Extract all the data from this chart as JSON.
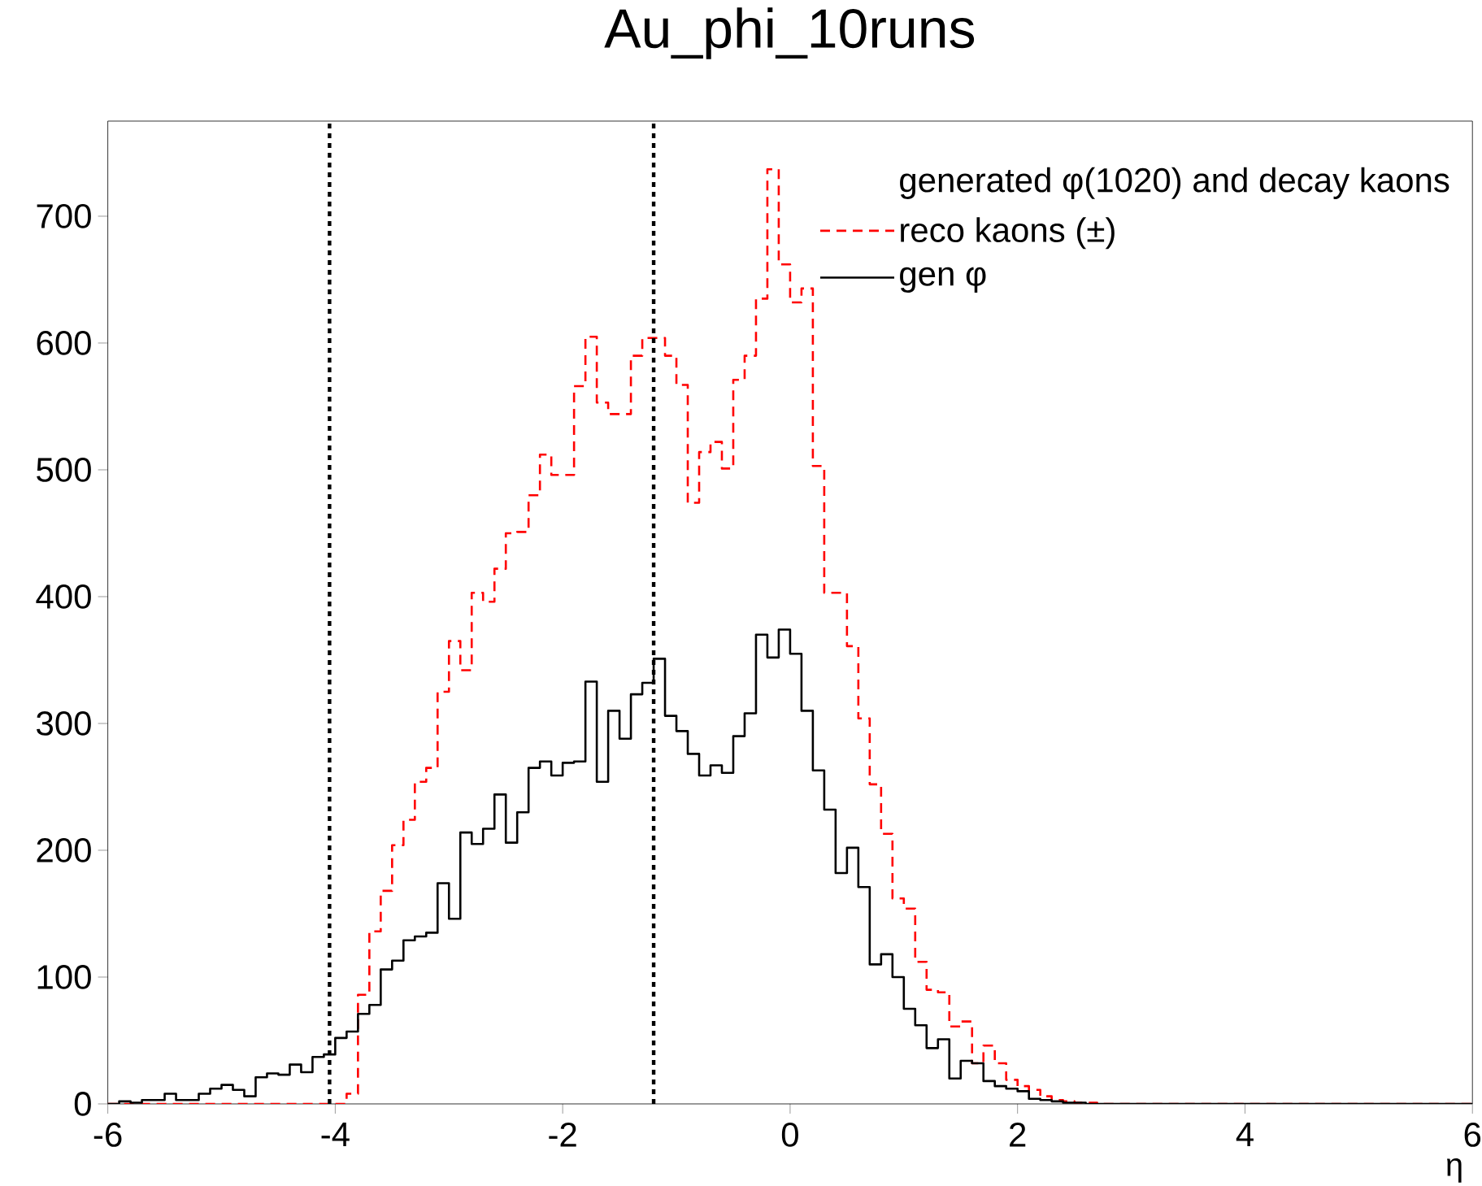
{
  "chart_data": {
    "type": "histogram",
    "title": "Au_phi_10runs",
    "xlabel": "η",
    "legend_title": "generated φ(1020) and decay kaons",
    "bins": [
      -6,
      -5.9,
      -5.8,
      -5.7,
      -5.6,
      -5.5,
      -5.4,
      -5.3,
      -5.2,
      -5.1,
      -5,
      -4.9,
      -4.8,
      -4.7,
      -4.6,
      -4.5,
      -4.4,
      -4.3,
      -4.2,
      -4.1,
      -4,
      -3.9,
      -3.8,
      -3.7,
      -3.6,
      -3.5,
      -3.4,
      -3.3,
      -3.2,
      -3.1,
      -3,
      -2.9,
      -2.8,
      -2.7,
      -2.6,
      -2.5,
      -2.4,
      -2.3,
      -2.2,
      -2.1,
      -2,
      -1.9,
      -1.8,
      -1.7,
      -1.6,
      -1.5,
      -1.4,
      -1.3,
      -1.2,
      -1.1,
      -1,
      -0.9,
      -0.8,
      -0.7,
      -0.6,
      -0.5,
      -0.4,
      -0.3,
      -0.2,
      -0.1,
      0,
      0.1,
      0.2,
      0.3,
      0.4,
      0.5,
      0.6,
      0.7,
      0.8,
      0.9,
      1,
      1.1,
      1.2,
      1.3,
      1.4,
      1.5,
      1.6,
      1.7,
      1.8,
      1.9,
      2,
      2.1,
      2.2,
      2.3,
      2.4,
      2.5,
      2.6,
      2.7,
      2.8,
      2.9,
      3,
      3.1,
      3.2,
      3.3,
      3.4,
      3.5,
      3.6,
      3.7,
      3.8,
      3.9,
      4,
      4.1,
      4.2,
      4.3,
      4.4,
      4.5,
      4.6,
      4.7,
      4.8,
      4.9,
      5,
      5.1,
      5.2,
      5.3,
      5.4,
      5.5,
      5.6,
      5.7,
      5.8,
      5.9,
      6
    ],
    "series": [
      {
        "name": "reco kaons (±)",
        "color": "#ff0000",
        "line_style": "dashed",
        "values": [
          0,
          0,
          0,
          0,
          0,
          0,
          0,
          0,
          0,
          0,
          0,
          0,
          0,
          0,
          0,
          0,
          0,
          0,
          0,
          0,
          0,
          8,
          86,
          136,
          168,
          204,
          224,
          254,
          265,
          325,
          365,
          342,
          403,
          396,
          422,
          450,
          451,
          480,
          512,
          496,
          496,
          566,
          605,
          553,
          544,
          544,
          590,
          604,
          604,
          590,
          567,
          474,
          514,
          522,
          501,
          571,
          590,
          635,
          737,
          662,
          632,
          643,
          503,
          403,
          403,
          361,
          304,
          252,
          213,
          162,
          154,
          112,
          90,
          88,
          61,
          65,
          32,
          46,
          32,
          19,
          14,
          11,
          6,
          3,
          2,
          1,
          1,
          0,
          0,
          0,
          0,
          0,
          0,
          0,
          0,
          0,
          0,
          0,
          0,
          0,
          0,
          0,
          0,
          0,
          0,
          0,
          0,
          0,
          0,
          0,
          0,
          0,
          0,
          0,
          0,
          0,
          0,
          0,
          0,
          0
        ]
      },
      {
        "name": "gen φ",
        "color": "#000000",
        "line_style": "solid",
        "values": [
          0,
          2,
          1,
          3,
          3,
          8,
          3,
          3,
          8,
          12,
          15,
          11,
          6,
          21,
          24,
          23,
          31,
          25,
          37,
          39,
          52,
          57,
          71,
          78,
          106,
          113,
          129,
          132,
          135,
          174,
          146,
          214,
          205,
          217,
          244,
          206,
          230,
          265,
          270,
          259,
          269,
          270,
          333,
          254,
          310,
          288,
          323,
          332,
          351,
          306,
          294,
          276,
          259,
          267,
          261,
          290,
          308,
          370,
          352,
          374,
          355,
          310,
          263,
          232,
          182,
          202,
          171,
          110,
          118,
          100,
          75,
          62,
          44,
          51,
          20,
          34,
          32,
          18,
          14,
          12,
          10,
          4,
          3,
          2,
          1,
          1,
          0,
          0,
          0,
          0,
          0,
          0,
          0,
          0,
          0,
          0,
          0,
          0,
          0,
          0,
          0,
          0,
          0,
          0,
          0,
          0,
          0,
          0,
          0,
          0,
          0,
          0,
          0,
          0,
          0,
          0,
          0,
          0,
          0,
          0
        ]
      }
    ],
    "ref_lines": [
      {
        "axis": "x",
        "value": -4.05,
        "color": "#000000",
        "line_style": "dotted"
      },
      {
        "axis": "x",
        "value": -1.2,
        "color": "#000000",
        "line_style": "dotted"
      }
    ],
    "xlim": [
      -6,
      6
    ],
    "xticks": [
      -6,
      -4,
      -2,
      0,
      2,
      4,
      6
    ],
    "ylim": [
      0,
      775
    ],
    "yticks": [
      0,
      100,
      200,
      300,
      400,
      500,
      600,
      700
    ],
    "grid": false,
    "legend": "top right"
  }
}
